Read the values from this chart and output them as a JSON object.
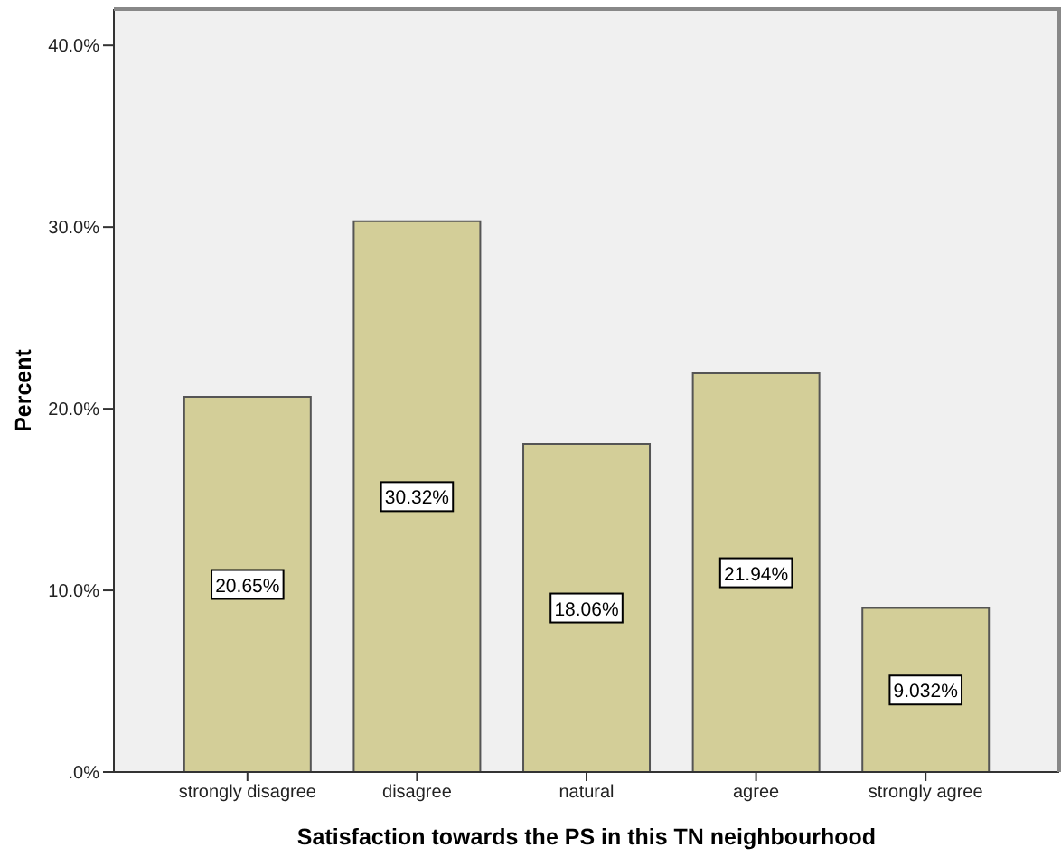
{
  "chart_data": {
    "type": "bar",
    "xlabel": "Satisfaction towards the PS in this TN neighbourhood",
    "ylabel": "Percent",
    "categories": [
      "strongly disagree",
      "disagree",
      "natural",
      "agree",
      "strongly agree"
    ],
    "values": [
      20.65,
      30.32,
      18.06,
      21.94,
      9.032
    ],
    "color": "#d3ce98",
    "value_labels": [
      "20.65%",
      "30.32%",
      "18.06%",
      "21.94%",
      "9.032%"
    ],
    "ylim": [
      0,
      42
    ],
    "yticks": [
      {
        "value": 0,
        "label": ".0%"
      },
      {
        "value": 10,
        "label": "10.0%"
      },
      {
        "value": 20,
        "label": "20.0%"
      },
      {
        "value": 30,
        "label": "30.0%"
      },
      {
        "value": 40,
        "label": "40.0%"
      }
    ]
  }
}
